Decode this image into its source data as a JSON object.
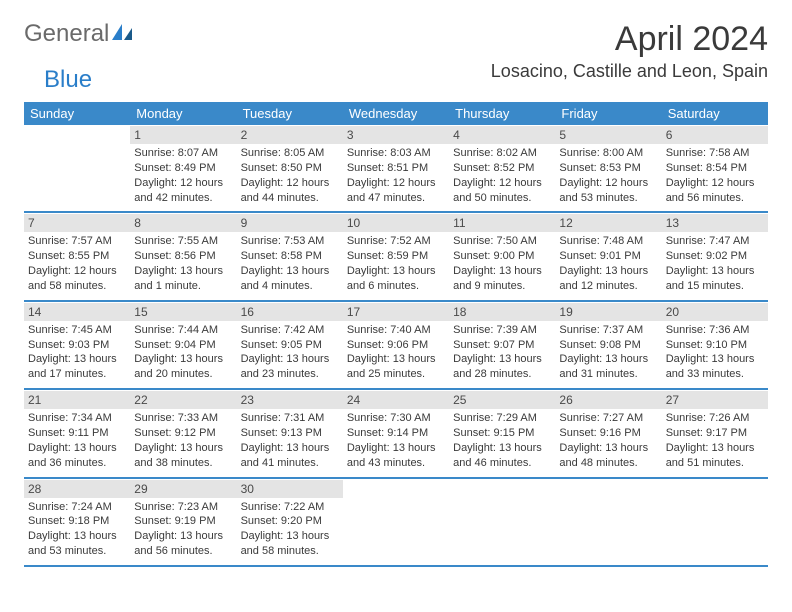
{
  "brand": {
    "general": "General",
    "blue": "Blue"
  },
  "title": "April 2024",
  "location": "Losacino, Castille and Leon, Spain",
  "colors": {
    "header_bg": "#3a89c9",
    "header_text": "#ffffff",
    "daynum_bg": "#e4e4e4",
    "text": "#3a3a3a",
    "border": "#3a89c9",
    "logo_blue": "#2a7ec9",
    "logo_gray": "#6a6a6a"
  },
  "day_headers": [
    "Sunday",
    "Monday",
    "Tuesday",
    "Wednesday",
    "Thursday",
    "Friday",
    "Saturday"
  ],
  "weeks": [
    [
      {
        "n": "",
        "sr": "",
        "ss": "",
        "dl": ""
      },
      {
        "n": "1",
        "sr": "Sunrise: 8:07 AM",
        "ss": "Sunset: 8:49 PM",
        "dl": "Daylight: 12 hours and 42 minutes."
      },
      {
        "n": "2",
        "sr": "Sunrise: 8:05 AM",
        "ss": "Sunset: 8:50 PM",
        "dl": "Daylight: 12 hours and 44 minutes."
      },
      {
        "n": "3",
        "sr": "Sunrise: 8:03 AM",
        "ss": "Sunset: 8:51 PM",
        "dl": "Daylight: 12 hours and 47 minutes."
      },
      {
        "n": "4",
        "sr": "Sunrise: 8:02 AM",
        "ss": "Sunset: 8:52 PM",
        "dl": "Daylight: 12 hours and 50 minutes."
      },
      {
        "n": "5",
        "sr": "Sunrise: 8:00 AM",
        "ss": "Sunset: 8:53 PM",
        "dl": "Daylight: 12 hours and 53 minutes."
      },
      {
        "n": "6",
        "sr": "Sunrise: 7:58 AM",
        "ss": "Sunset: 8:54 PM",
        "dl": "Daylight: 12 hours and 56 minutes."
      }
    ],
    [
      {
        "n": "7",
        "sr": "Sunrise: 7:57 AM",
        "ss": "Sunset: 8:55 PM",
        "dl": "Daylight: 12 hours and 58 minutes."
      },
      {
        "n": "8",
        "sr": "Sunrise: 7:55 AM",
        "ss": "Sunset: 8:56 PM",
        "dl": "Daylight: 13 hours and 1 minute."
      },
      {
        "n": "9",
        "sr": "Sunrise: 7:53 AM",
        "ss": "Sunset: 8:58 PM",
        "dl": "Daylight: 13 hours and 4 minutes."
      },
      {
        "n": "10",
        "sr": "Sunrise: 7:52 AM",
        "ss": "Sunset: 8:59 PM",
        "dl": "Daylight: 13 hours and 6 minutes."
      },
      {
        "n": "11",
        "sr": "Sunrise: 7:50 AM",
        "ss": "Sunset: 9:00 PM",
        "dl": "Daylight: 13 hours and 9 minutes."
      },
      {
        "n": "12",
        "sr": "Sunrise: 7:48 AM",
        "ss": "Sunset: 9:01 PM",
        "dl": "Daylight: 13 hours and 12 minutes."
      },
      {
        "n": "13",
        "sr": "Sunrise: 7:47 AM",
        "ss": "Sunset: 9:02 PM",
        "dl": "Daylight: 13 hours and 15 minutes."
      }
    ],
    [
      {
        "n": "14",
        "sr": "Sunrise: 7:45 AM",
        "ss": "Sunset: 9:03 PM",
        "dl": "Daylight: 13 hours and 17 minutes."
      },
      {
        "n": "15",
        "sr": "Sunrise: 7:44 AM",
        "ss": "Sunset: 9:04 PM",
        "dl": "Daylight: 13 hours and 20 minutes."
      },
      {
        "n": "16",
        "sr": "Sunrise: 7:42 AM",
        "ss": "Sunset: 9:05 PM",
        "dl": "Daylight: 13 hours and 23 minutes."
      },
      {
        "n": "17",
        "sr": "Sunrise: 7:40 AM",
        "ss": "Sunset: 9:06 PM",
        "dl": "Daylight: 13 hours and 25 minutes."
      },
      {
        "n": "18",
        "sr": "Sunrise: 7:39 AM",
        "ss": "Sunset: 9:07 PM",
        "dl": "Daylight: 13 hours and 28 minutes."
      },
      {
        "n": "19",
        "sr": "Sunrise: 7:37 AM",
        "ss": "Sunset: 9:08 PM",
        "dl": "Daylight: 13 hours and 31 minutes."
      },
      {
        "n": "20",
        "sr": "Sunrise: 7:36 AM",
        "ss": "Sunset: 9:10 PM",
        "dl": "Daylight: 13 hours and 33 minutes."
      }
    ],
    [
      {
        "n": "21",
        "sr": "Sunrise: 7:34 AM",
        "ss": "Sunset: 9:11 PM",
        "dl": "Daylight: 13 hours and 36 minutes."
      },
      {
        "n": "22",
        "sr": "Sunrise: 7:33 AM",
        "ss": "Sunset: 9:12 PM",
        "dl": "Daylight: 13 hours and 38 minutes."
      },
      {
        "n": "23",
        "sr": "Sunrise: 7:31 AM",
        "ss": "Sunset: 9:13 PM",
        "dl": "Daylight: 13 hours and 41 minutes."
      },
      {
        "n": "24",
        "sr": "Sunrise: 7:30 AM",
        "ss": "Sunset: 9:14 PM",
        "dl": "Daylight: 13 hours and 43 minutes."
      },
      {
        "n": "25",
        "sr": "Sunrise: 7:29 AM",
        "ss": "Sunset: 9:15 PM",
        "dl": "Daylight: 13 hours and 46 minutes."
      },
      {
        "n": "26",
        "sr": "Sunrise: 7:27 AM",
        "ss": "Sunset: 9:16 PM",
        "dl": "Daylight: 13 hours and 48 minutes."
      },
      {
        "n": "27",
        "sr": "Sunrise: 7:26 AM",
        "ss": "Sunset: 9:17 PM",
        "dl": "Daylight: 13 hours and 51 minutes."
      }
    ],
    [
      {
        "n": "28",
        "sr": "Sunrise: 7:24 AM",
        "ss": "Sunset: 9:18 PM",
        "dl": "Daylight: 13 hours and 53 minutes."
      },
      {
        "n": "29",
        "sr": "Sunrise: 7:23 AM",
        "ss": "Sunset: 9:19 PM",
        "dl": "Daylight: 13 hours and 56 minutes."
      },
      {
        "n": "30",
        "sr": "Sunrise: 7:22 AM",
        "ss": "Sunset: 9:20 PM",
        "dl": "Daylight: 13 hours and 58 minutes."
      },
      {
        "n": "",
        "sr": "",
        "ss": "",
        "dl": ""
      },
      {
        "n": "",
        "sr": "",
        "ss": "",
        "dl": ""
      },
      {
        "n": "",
        "sr": "",
        "ss": "",
        "dl": ""
      },
      {
        "n": "",
        "sr": "",
        "ss": "",
        "dl": ""
      }
    ]
  ]
}
